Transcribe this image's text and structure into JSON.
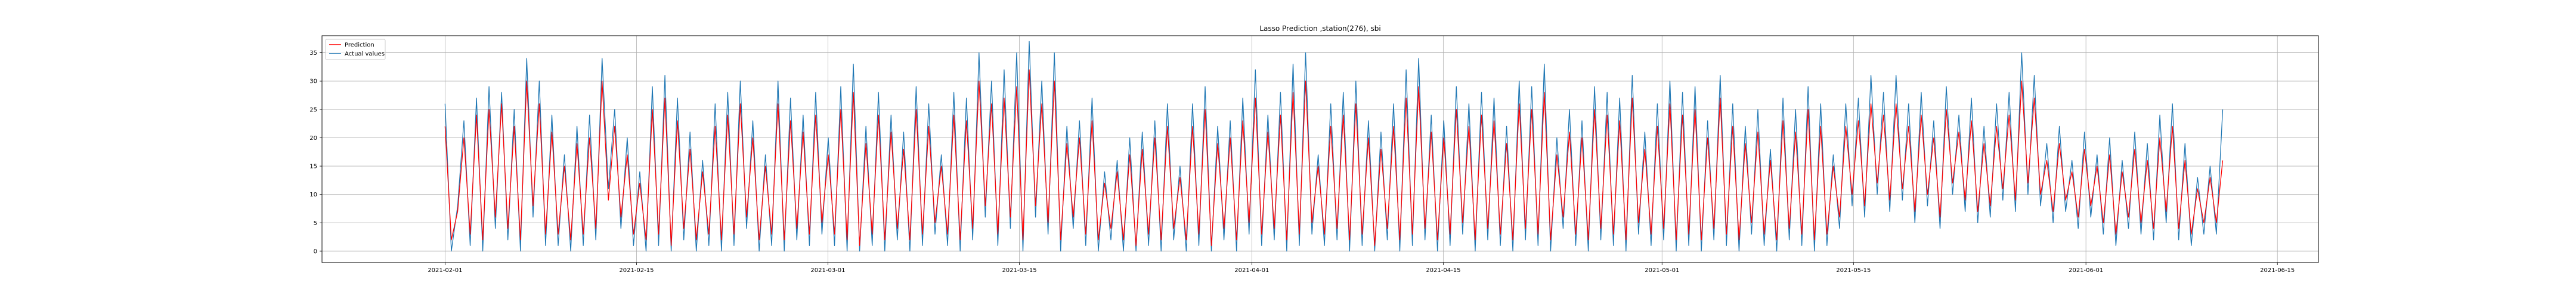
{
  "chart_data": {
    "type": "line",
    "title": "Lasso Prediction ,station(276), sbi",
    "xlabel": "",
    "ylabel": "",
    "xlim": [
      "2021-01-23",
      "2021-06-18"
    ],
    "ylim": [
      -2,
      38
    ],
    "x_ticks": [
      "2021-02-01",
      "2021-02-15",
      "2021-03-01",
      "2021-03-15",
      "2021-04-01",
      "2021-04-15",
      "2021-05-01",
      "2021-05-15",
      "2021-06-01",
      "2021-06-15"
    ],
    "y_ticks": [
      0,
      5,
      10,
      15,
      20,
      25,
      30,
      35
    ],
    "grid": true,
    "legend_position": "top-left",
    "x_start": "2021-02-01",
    "x_end": "2021-06-11",
    "sampling": "2 points per day (daily low / daily peak)",
    "series": [
      {
        "name": "Prediction",
        "color": "#ff0000",
        "values": [
          22,
          2,
          7,
          20,
          3,
          24,
          2,
          25,
          6,
          26,
          4,
          22,
          2,
          30,
          8,
          26,
          3,
          21,
          3,
          15,
          2,
          19,
          3,
          20,
          4,
          30,
          9,
          22,
          6,
          17,
          3,
          12,
          2,
          25,
          3,
          27,
          1,
          23,
          4,
          18,
          2,
          14,
          3,
          22,
          2,
          24,
          3,
          26,
          6,
          20,
          2,
          15,
          3,
          26,
          2,
          23,
          4,
          21,
          3,
          24,
          5,
          17,
          3,
          25,
          2,
          28,
          1,
          19,
          3,
          24,
          2,
          21,
          4,
          18,
          2,
          25,
          3,
          22,
          5,
          15,
          3,
          24,
          2,
          23,
          4,
          30,
          8,
          26,
          3,
          27,
          6,
          29,
          2,
          32,
          8,
          26,
          5,
          30,
          2,
          19,
          6,
          20,
          3,
          23,
          2,
          12,
          4,
          14,
          2,
          17,
          1,
          18,
          3,
          20,
          2,
          22,
          4,
          13,
          2,
          22,
          3,
          25,
          1,
          19,
          4,
          20,
          2,
          23,
          5,
          27,
          3,
          21,
          4,
          24,
          2,
          28,
          3,
          30,
          5,
          15,
          3,
          22,
          4,
          24,
          2,
          26,
          3,
          20,
          1,
          18,
          4,
          22,
          2,
          27,
          3,
          29,
          4,
          21,
          2,
          20,
          3,
          25,
          5,
          22,
          2,
          24,
          4,
          23,
          3,
          19,
          2,
          26,
          4,
          25,
          3,
          28,
          2,
          17,
          6,
          21,
          3,
          20,
          2,
          25,
          4,
          24,
          3,
          23,
          2,
          27,
          5,
          18,
          3,
          22,
          4,
          26,
          2,
          24,
          3,
          25,
          2,
          20,
          4,
          27,
          3,
          22,
          2,
          19,
          5,
          21,
          3,
          16,
          2,
          23,
          4,
          21,
          3,
          25,
          2,
          22,
          3,
          15,
          6,
          22,
          10,
          23,
          8,
          26,
          12,
          24,
          9,
          26,
          11,
          22,
          7,
          24,
          10,
          20,
          6,
          25,
          12,
          21,
          9,
          23,
          7,
          19,
          8,
          22,
          11,
          24,
          9,
          30,
          12,
          27,
          10,
          16,
          7,
          19,
          9,
          14,
          6,
          18,
          8,
          15,
          5,
          17,
          3,
          14,
          6,
          18,
          5,
          16,
          4,
          20,
          7,
          22,
          4,
          16,
          3,
          11,
          5,
          13,
          5,
          16
        ]
      },
      {
        "name": "Actual values",
        "color": "#1f77b4",
        "values": [
          26,
          0,
          8,
          23,
          1,
          27,
          0,
          29,
          4,
          28,
          2,
          25,
          0,
          34,
          6,
          30,
          1,
          24,
          1,
          17,
          0,
          22,
          1,
          24,
          2,
          34,
          11,
          25,
          4,
          20,
          1,
          14,
          0,
          29,
          1,
          31,
          0,
          27,
          2,
          21,
          0,
          16,
          1,
          26,
          0,
          28,
          1,
          30,
          4,
          23,
          0,
          17,
          1,
          30,
          0,
          27,
          2,
          24,
          1,
          28,
          3,
          20,
          1,
          29,
          0,
          33,
          0,
          22,
          1,
          28,
          0,
          24,
          2,
          21,
          0,
          29,
          1,
          26,
          3,
          17,
          1,
          28,
          0,
          27,
          2,
          35,
          6,
          30,
          1,
          32,
          4,
          35,
          0,
          37,
          6,
          30,
          3,
          35,
          0,
          22,
          4,
          23,
          1,
          27,
          0,
          14,
          2,
          16,
          0,
          20,
          0,
          21,
          1,
          23,
          0,
          26,
          2,
          15,
          0,
          26,
          1,
          29,
          0,
          22,
          2,
          23,
          0,
          27,
          3,
          32,
          1,
          24,
          2,
          28,
          0,
          33,
          1,
          35,
          3,
          17,
          1,
          26,
          2,
          28,
          0,
          30,
          1,
          23,
          0,
          21,
          2,
          26,
          0,
          32,
          1,
          34,
          2,
          24,
          0,
          23,
          1,
          29,
          3,
          26,
          0,
          28,
          2,
          27,
          1,
          22,
          0,
          30,
          2,
          29,
          1,
          33,
          0,
          20,
          4,
          25,
          1,
          23,
          0,
          29,
          2,
          28,
          1,
          27,
          0,
          31,
          3,
          21,
          1,
          26,
          2,
          30,
          0,
          28,
          1,
          29,
          0,
          23,
          2,
          31,
          1,
          26,
          0,
          22,
          3,
          25,
          1,
          18,
          0,
          27,
          2,
          25,
          1,
          29,
          0,
          26,
          1,
          17,
          4,
          26,
          8,
          27,
          6,
          31,
          10,
          28,
          7,
          31,
          9,
          26,
          5,
          28,
          8,
          23,
          4,
          29,
          10,
          24,
          7,
          27,
          5,
          22,
          6,
          26,
          9,
          28,
          7,
          35,
          10,
          31,
          8,
          19,
          5,
          22,
          7,
          16,
          4,
          21,
          6,
          17,
          3,
          20,
          1,
          16,
          4,
          21,
          3,
          19,
          2,
          24,
          5,
          26,
          2,
          19,
          1,
          13,
          3,
          15,
          3,
          25
        ]
      }
    ]
  }
}
